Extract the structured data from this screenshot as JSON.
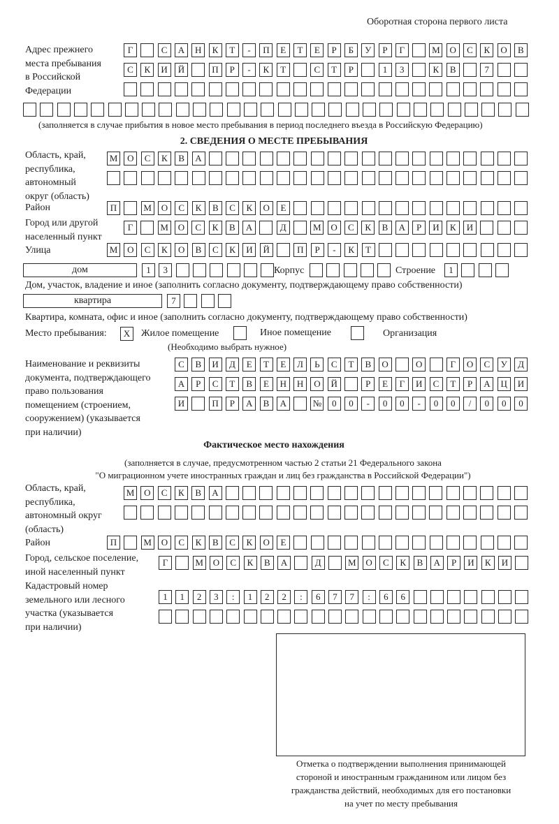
{
  "header": {
    "page_side": "Оборотная сторона первого листа"
  },
  "previous_address": {
    "label": [
      "Адрес прежнего",
      "места пребывания",
      "в Российской",
      "Федерации"
    ],
    "rows": [
      "Г САНКТ-ПЕТЕРБУРГ МОСКОВ",
      "СКИЙ ПР-КТ СТР 13 КВ 7",
      "",
      ""
    ],
    "note": "(заполняется в случае прибытия в новое место пребывания в период последнего въезда в Российскую Федерацию)"
  },
  "section2": {
    "title": "2. СВЕДЕНИЯ О МЕСТЕ ПРЕБЫВАНИЯ",
    "region_label": [
      "Область, край,",
      "республика,",
      "автономный",
      "округ (область)"
    ],
    "region_rows": [
      "МОСКВА",
      ""
    ],
    "district_label": "Район",
    "district": "П МОСКВСКОЕ",
    "city_label": [
      "Город или другой",
      "населенный пункт"
    ],
    "city": "Г МОСКВА Д МОСКВАРИКИ",
    "street_label": "Улица",
    "street": "МОСКОВСКИЙ ПР-КТ",
    "house_type": "дом",
    "house": "13",
    "korpus_label": "Корпус",
    "korpus": "",
    "stroenie_label": "Строение",
    "stroenie": "1",
    "house_note": "Дом, участок, владение и иное (заполнить согласно документу, подтверждающему право собственности)",
    "apt_type": "квартира",
    "apt": "7",
    "apt_note": "Квартира, комната, офис и иное (заполнить согласно документу, подтверждающему право собственности)",
    "stay_place_label": "Место пребывания:",
    "stay_options": [
      {
        "label": "Жилое помещение",
        "mark": "X"
      },
      {
        "label": "Иное помещение",
        "mark": ""
      },
      {
        "label": "Организация",
        "mark": ""
      }
    ],
    "choose_note": "(Необходимо выбрать нужное)",
    "doc_label": [
      "Наименование и реквизиты",
      "документа, подтверждающего",
      "право пользования",
      "помещением (строением,",
      "сооружением) (указывается",
      "при наличии)"
    ],
    "doc_rows": [
      "СВИДЕТЕЛЬСТВО О ГОСУД",
      "АРСТВЕННОЙ РЕГИСТРАЦИ",
      "И ПРАВА №00-00-00/000"
    ]
  },
  "actual": {
    "title": "Фактическое место нахождения",
    "note": [
      "(заполняется в случае, предусмотренном частью 2 статьи 21 Федерального закона",
      "\"О миграционном учете иностранных граждан и лиц без гражданства в Российской Федерации\")"
    ],
    "region_label": [
      "Область, край,",
      "республика,",
      "автономный округ",
      "(область)"
    ],
    "region_rows": [
      "МОСКВА",
      ""
    ],
    "district_label": "Район",
    "district": "П МОСКВСКОЕ",
    "city_label": [
      "Город, сельское поселение,",
      "иной населенный пункт"
    ],
    "city": "Г МОСКВА Д МОСКВАРИКИ",
    "cadastral_label": [
      "Кадастровый номер",
      "земельного или лесного",
      "участка (указывается",
      "при наличии)"
    ],
    "cadastral_rows": [
      "1123:122:677:66",
      ""
    ]
  },
  "confirmation": {
    "caption": [
      "Отметка о подтверждении выполнения принимающей",
      "стороной и иностранным гражданином или лицом без",
      "гражданства действий, необходимых для его постановки",
      "на учет по месту пребывания"
    ]
  }
}
